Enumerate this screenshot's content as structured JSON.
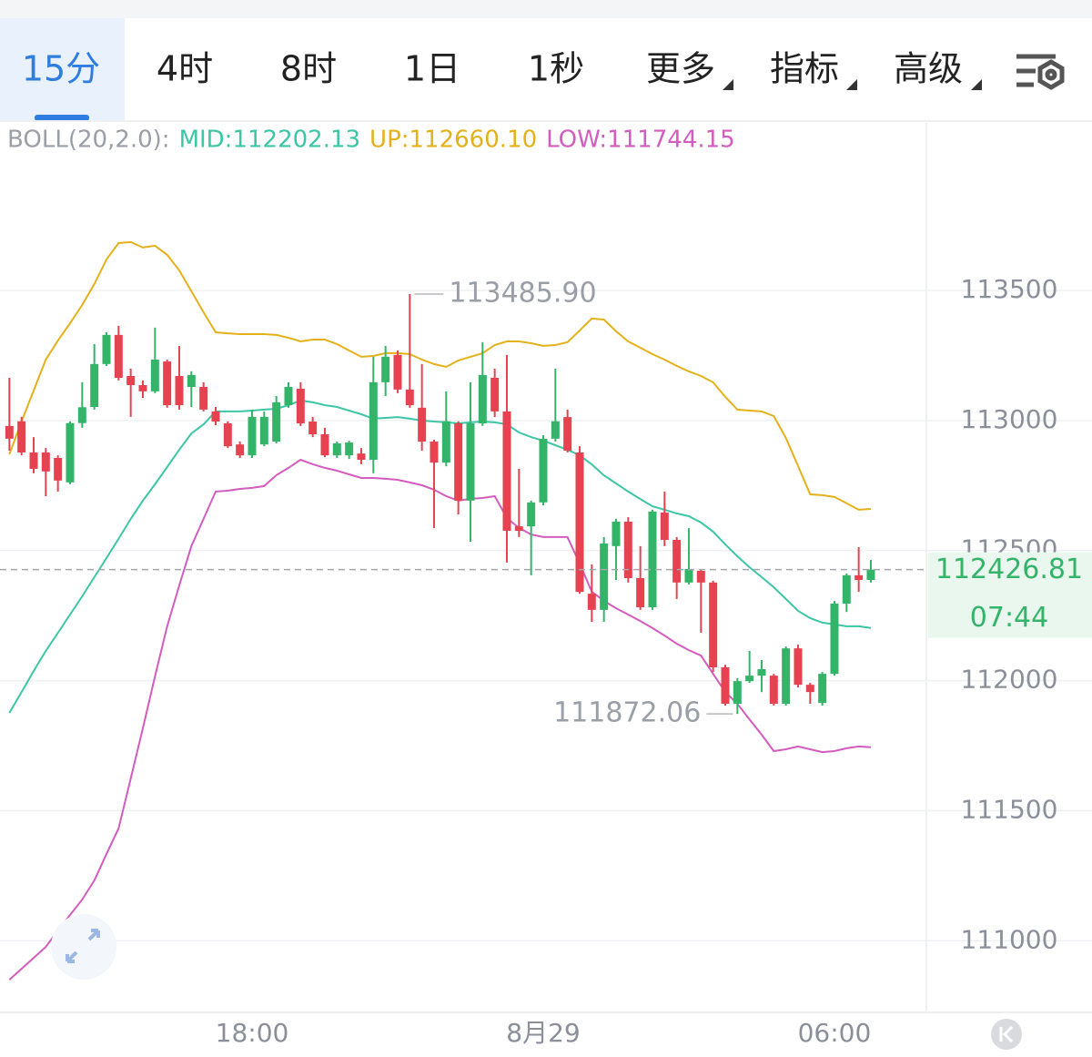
{
  "tabs": [
    "15分",
    "4时",
    "8时",
    "1日",
    "1秒",
    "更多",
    "指标",
    "高级"
  ],
  "chart_data": {
    "type": "candlestick",
    "indicator_label": "BOLL(20,2.0):",
    "categories": [
      null,
      null,
      null,
      null,
      null,
      null,
      null,
      null,
      null,
      null,
      null,
      null,
      null,
      null,
      null,
      null,
      null,
      null,
      null,
      null,
      "18:00",
      null,
      null,
      null,
      null,
      null,
      null,
      null,
      null,
      null,
      null,
      null,
      null,
      null,
      null,
      null,
      null,
      null,
      null,
      null,
      null,
      null,
      null,
      null,
      "8月29",
      null,
      null,
      null,
      null,
      null,
      null,
      null,
      null,
      null,
      null,
      null,
      null,
      null,
      null,
      null,
      null,
      null,
      null,
      null,
      null,
      null,
      null,
      null,
      "06:00",
      null,
      null,
      null
    ],
    "open": [
      112979,
      112997,
      112877,
      112877,
      112856,
      112762,
      112990,
      113052,
      113217,
      113329,
      113171,
      113136,
      113112,
      113227,
      113171,
      113129,
      113129,
      113035,
      112989,
      112908,
      112866,
      112908,
      112919,
      113059,
      113122,
      112996,
      112947,
      112866,
      112866,
      112873,
      112849,
      113147,
      113252,
      113119,
      113049,
      112919,
      112838,
      112989,
      112692,
      112989,
      113164,
      113035,
      112593,
      112593,
      112685,
      112930,
      113013,
      112877,
      112334,
      112272,
      112517,
      112611,
      112394,
      112282,
      112646,
      112541,
      112377,
      112422,
      112377,
      112051,
      111911,
      111998,
      112019,
      112019,
      111911,
      112124,
      111984,
      111914,
      112026,
      112296,
      112405,
      112387
    ],
    "high": [
      113164,
      113014,
      112936,
      112894,
      112866,
      112997,
      113147,
      113294,
      113339,
      113364,
      113199,
      113154,
      113357,
      113234,
      113287,
      113189,
      113147,
      113052,
      112997,
      112919,
      113042,
      113035,
      113094,
      113147,
      113147,
      113014,
      112972,
      112919,
      112922,
      112894,
      113245,
      113287,
      113269,
      113485.9,
      113217,
      112926,
      113112,
      112997,
      113147,
      113301,
      113199,
      113252,
      112814,
      112692,
      112943,
      113199,
      113042,
      112901,
      112447,
      112552,
      112622,
      112628,
      112517,
      112657,
      112727,
      112552,
      112586,
      112429,
      112384,
      112061,
      112009,
      112114,
      112079,
      112026,
      112131,
      112138,
      111991,
      112033,
      112306,
      112412,
      112513,
      112464
    ],
    "low": [
      112884,
      112866,
      112797,
      112709,
      112727,
      112755,
      112972,
      113042,
      113210,
      113154,
      113014,
      113087,
      113105,
      113049,
      113042,
      113052,
      113035,
      112982,
      112894,
      112856,
      112856,
      112901,
      112912,
      113049,
      112979,
      112936,
      112859,
      112856,
      112852,
      112832,
      112797,
      113094,
      113105,
      113049,
      112884,
      112586,
      112824,
      112639,
      112534,
      112979,
      113013,
      112454,
      112552,
      112405,
      112674,
      112919,
      112877,
      112334,
      112226,
      112226,
      112387,
      112377,
      112272,
      112272,
      112517,
      112314,
      112370,
      112184,
      112033,
      111904,
      111872.06,
      111991,
      111956,
      111904,
      111904,
      111974,
      111911,
      111904,
      112019,
      112264,
      112341,
      112377
    ],
    "close": [
      112930,
      112877,
      112814,
      112804,
      112769,
      112990,
      113051,
      113217,
      113329,
      113164,
      113136,
      113112,
      113234,
      113059,
      113059,
      113175,
      113042,
      112996,
      112901,
      112866,
      113014,
      113014,
      113070,
      113129,
      112989,
      112947,
      112866,
      112912,
      112915,
      112849,
      113147,
      113245,
      113119,
      113059,
      112919,
      112838,
      112997,
      112692,
      112989,
      113175,
      113035,
      112576,
      112576,
      112685,
      112930,
      112997,
      112884,
      112341,
      112272,
      112527,
      112611,
      112394,
      112282,
      112650,
      112541,
      112377,
      112429,
      112377,
      112051,
      111911,
      111998,
      112019,
      112044,
      111911,
      112124,
      111984,
      111956,
      112026,
      112296,
      112405,
      112387,
      112426.81
    ],
    "up_color": "#33b469",
    "down_color": "#e6424f",
    "lines": [
      {
        "name": "MID:112202.13",
        "color": "#3cc6a6",
        "values": [
          111876,
          111956,
          112037,
          112114,
          112184,
          112254,
          112324,
          112398,
          112471,
          112545,
          112622,
          112692,
          112755,
          112821,
          112888,
          112950,
          112985,
          113035,
          113035,
          113035,
          113038,
          113042,
          113045,
          113059,
          113077,
          113070,
          113059,
          113052,
          113038,
          113024,
          113007,
          113010,
          113013,
          113007,
          113000,
          112996,
          112993,
          112989,
          112993,
          112996,
          112993,
          112985,
          112954,
          112936,
          112922,
          112905,
          112887,
          112866,
          112831,
          112789,
          112758,
          112727,
          112698,
          112670,
          112657,
          112643,
          112632,
          112608,
          112573,
          112524,
          112478,
          112436,
          112398,
          112359,
          112314,
          112268,
          112240,
          112223,
          112216,
          112209,
          112209,
          112202.13
        ]
      },
      {
        "name": "UP:112660.10",
        "color": "#e4b11b",
        "values": [
          112870,
          112996,
          113115,
          113234,
          113307,
          113374,
          113444,
          113525,
          113619,
          113682,
          113686,
          113665,
          113672,
          113637,
          113577,
          113497,
          113416,
          113339,
          113335,
          113332,
          113332,
          113332,
          113329,
          113318,
          113304,
          113311,
          113311,
          113294,
          113269,
          113245,
          113248,
          113259,
          113259,
          113255,
          113234,
          113217,
          113206,
          113231,
          113245,
          113259,
          113290,
          113304,
          113304,
          113297,
          113287,
          113290,
          113301,
          113346,
          113392,
          113388,
          113343,
          113304,
          113280,
          113255,
          113234,
          113210,
          113189,
          113171,
          113147,
          113091,
          113042,
          113038,
          113035,
          113017,
          112933,
          112825,
          112716,
          112713,
          112706,
          112682,
          112657,
          112660.1
        ]
      },
      {
        "name": "LOW:111744.15",
        "color": "#d35cbe",
        "values": [
          110850,
          110892,
          110934,
          110976,
          111039,
          111099,
          111158,
          111232,
          111333,
          111432,
          111624,
          111817,
          112016,
          112209,
          112366,
          112517,
          112622,
          112727,
          112730,
          112737,
          112741,
          112748,
          112790,
          112818,
          112849,
          112832,
          112818,
          112807,
          112793,
          112779,
          112779,
          112776,
          112772,
          112762,
          112751,
          112734,
          112709,
          112692,
          112699,
          112702,
          112709,
          112625,
          112587,
          112562,
          112552,
          112552,
          112552,
          112450,
          112342,
          112307,
          112278,
          112254,
          112229,
          112202,
          112173,
          112142,
          112117,
          112096,
          112026,
          111956,
          111911,
          111851,
          111792,
          111729,
          111736,
          111747,
          111736,
          111725,
          111729,
          111740,
          111747,
          111744.15
        ]
      }
    ],
    "ylim": [
      110724.5,
      114144
    ],
    "yticks": [
      111000,
      111500,
      112000,
      112500,
      113000,
      113500
    ],
    "grid": true,
    "annotations": [
      {
        "value": 113485.9,
        "label": "113485.90"
      },
      {
        "value": 111872.06,
        "label": "111872.06"
      }
    ],
    "last_price": {
      "value": 112426.81,
      "label": "112426.81"
    },
    "countdown": "07:44"
  }
}
